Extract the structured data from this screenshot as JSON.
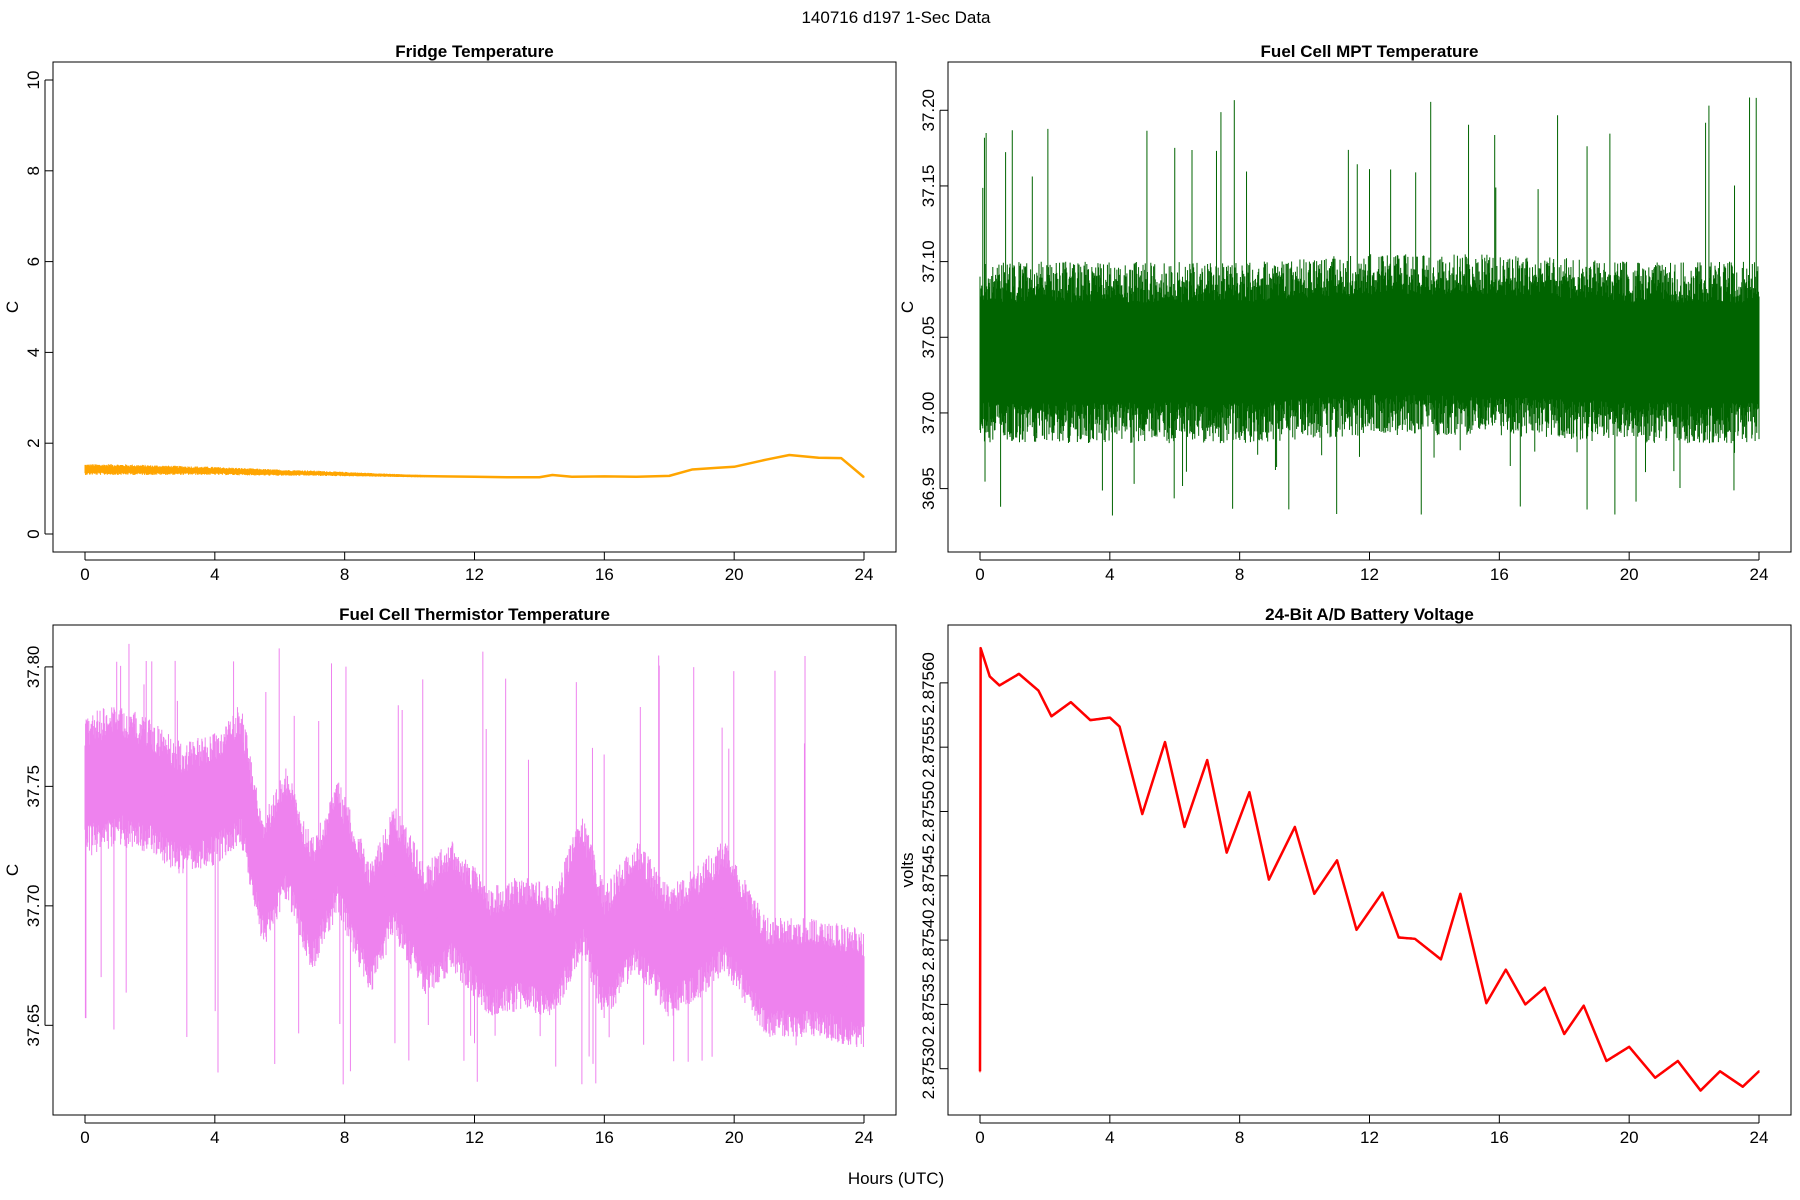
{
  "figure": {
    "title": "140716   d197   1-Sec Data",
    "xlabel": "Hours (UTC)"
  },
  "chart_data": [
    {
      "type": "line",
      "title": "Fridge Temperature",
      "xlabel": "",
      "ylabel": "C",
      "color": "#FFA500",
      "xlim": [
        0,
        24
      ],
      "ylim": [
        0,
        10
      ],
      "xticks": [
        0,
        4,
        8,
        12,
        16,
        20,
        24
      ],
      "yticks": [
        0,
        2,
        4,
        6,
        8,
        10
      ],
      "ytick_labels": [
        "0",
        "2",
        "4",
        "6",
        "8",
        "10"
      ],
      "x": [
        0,
        1,
        2,
        3,
        4,
        5,
        6,
        7,
        8,
        9,
        10,
        11,
        12,
        13,
        14,
        14.4,
        15,
        16,
        17,
        18,
        18.7,
        19.5,
        20,
        21,
        21.7,
        22.6,
        23.3,
        24
      ],
      "y": [
        1.42,
        1.42,
        1.41,
        1.4,
        1.39,
        1.37,
        1.35,
        1.34,
        1.32,
        1.3,
        1.28,
        1.27,
        1.26,
        1.25,
        1.25,
        1.3,
        1.26,
        1.27,
        1.26,
        1.28,
        1.42,
        1.46,
        1.48,
        1.64,
        1.74,
        1.68,
        1.67,
        1.25
      ],
      "band": [
        0.12,
        0.12,
        0.11,
        0.1,
        0.09,
        0.08,
        0.07,
        0.06,
        0.05,
        0.04,
        0.03,
        0.02,
        0.015,
        0.01,
        0.01,
        0.01,
        0.01,
        0.01,
        0.01,
        0.01,
        0.01,
        0.01,
        0.01,
        0.01,
        0.01,
        0.01,
        0.01,
        0.01
      ]
    },
    {
      "type": "line",
      "title": "Fuel Cell MPT Temperature",
      "xlabel": "",
      "ylabel": "C",
      "color": "#006400",
      "xlim": [
        0,
        24
      ],
      "ylim": [
        36.92,
        37.22
      ],
      "xticks": [
        0,
        4,
        8,
        12,
        16,
        20,
        24
      ],
      "yticks": [
        36.95,
        37.0,
        37.05,
        37.1,
        37.15,
        37.2
      ],
      "ytick_labels": [
        "36.95",
        "37.00",
        "37.05",
        "37.10",
        "37.15",
        "37.20"
      ],
      "x": [
        0,
        4,
        8,
        12,
        16,
        20,
        24
      ],
      "y": [
        37.04,
        37.04,
        37.04,
        37.045,
        37.045,
        37.04,
        37.04
      ],
      "band": [
        0.06,
        0.06,
        0.06,
        0.06,
        0.06,
        0.06,
        0.06
      ],
      "range_min": 36.93,
      "range_max": 37.21
    },
    {
      "type": "line",
      "title": "Fuel Cell Thermistor Temperature",
      "xlabel": "",
      "ylabel": "C",
      "color": "#EE82EE",
      "xlim": [
        0,
        24
      ],
      "ylim": [
        37.62,
        37.81
      ],
      "xticks": [
        0,
        4,
        8,
        12,
        16,
        20,
        24
      ],
      "yticks": [
        37.65,
        37.7,
        37.75,
        37.8
      ],
      "ytick_labels": [
        "37.65",
        "37.70",
        "37.75",
        "37.80"
      ],
      "x": [
        0,
        1,
        2,
        3,
        4,
        4.8,
        5.5,
        6.2,
        7,
        7.8,
        8.8,
        9.5,
        10.5,
        11.3,
        12.5,
        13.5,
        14.5,
        15.3,
        16,
        17,
        18,
        19,
        19.7,
        21,
        22.5,
        24
      ],
      "y": [
        37.75,
        37.755,
        37.75,
        37.74,
        37.745,
        37.755,
        37.71,
        37.73,
        37.7,
        37.725,
        37.69,
        37.715,
        37.69,
        37.7,
        37.68,
        37.685,
        37.68,
        37.71,
        37.68,
        37.7,
        37.68,
        37.69,
        37.7,
        37.67,
        37.67,
        37.665
      ],
      "band": [
        0.03,
        0.03,
        0.028,
        0.028,
        0.028,
        0.03,
        0.028,
        0.028,
        0.028,
        0.028,
        0.028,
        0.028,
        0.028,
        0.028,
        0.028,
        0.028,
        0.028,
        0.03,
        0.028,
        0.028,
        0.028,
        0.028,
        0.028,
        0.025,
        0.025,
        0.025
      ],
      "range_min": 37.625,
      "range_max": 37.81,
      "outlier": {
        "x": 0.02,
        "y": 37.653
      }
    },
    {
      "type": "line",
      "title": "24-Bit A/D Battery Voltage",
      "xlabel": "",
      "ylabel": "volts",
      "color": "#FF0000",
      "xlim": [
        0,
        24
      ],
      "ylim": [
        2.875278,
        2.875631
      ],
      "xticks": [
        0,
        4,
        8,
        12,
        16,
        20,
        24
      ],
      "yticks": [
        2.8753,
        2.87535,
        2.8754,
        2.87545,
        2.8755,
        2.87555,
        2.8756
      ],
      "ytick_labels": [
        "2.87530",
        "2.87535",
        "2.87540",
        "2.87545",
        "2.87550",
        "2.87555",
        "2.87560"
      ],
      "x": [
        0,
        0.02,
        0.3,
        0.6,
        1.2,
        1.8,
        2.2,
        2.8,
        3.4,
        4.0,
        4.3,
        5.0,
        5.7,
        6.3,
        7.0,
        7.6,
        8.3,
        8.9,
        9.7,
        10.3,
        11.0,
        11.6,
        12.4,
        12.9,
        13.4,
        14.2,
        14.8,
        15.6,
        16.2,
        16.8,
        17.4,
        18.0,
        18.6,
        19.3,
        20.0,
        20.8,
        21.5,
        22.2,
        22.8,
        23.5,
        24.0
      ],
      "y": [
        2.875298,
        2.875627,
        2.875605,
        2.875598,
        2.875607,
        2.875594,
        2.875574,
        2.875585,
        2.875571,
        2.875573,
        2.875566,
        2.875498,
        2.875554,
        2.875488,
        2.87554,
        2.875468,
        2.875515,
        2.875447,
        2.875488,
        2.875436,
        2.875462,
        2.875408,
        2.875437,
        2.875402,
        2.875401,
        2.875385,
        2.875436,
        2.875351,
        2.875377,
        2.87535,
        2.875363,
        2.875327,
        2.875349,
        2.875306,
        2.875317,
        2.875293,
        2.875306,
        2.875283,
        2.875298,
        2.875286,
        2.875298
      ],
      "band": [
        1e-06,
        1e-06,
        1e-06,
        1e-06,
        1e-06,
        1e-06,
        1e-06,
        1e-06,
        1e-06,
        1e-06,
        1e-06,
        1e-06,
        1e-06,
        1e-06,
        1e-06,
        1e-06,
        1e-06,
        1e-06,
        1e-06,
        1e-06,
        1e-06,
        1e-06,
        1e-06,
        1e-06,
        1e-06,
        1e-06,
        1e-06,
        1e-06,
        1e-06,
        1e-06,
        1e-06,
        1e-06,
        1e-06,
        1e-06,
        1e-06,
        1e-06,
        1e-06,
        1e-06,
        1e-06,
        1e-06,
        1e-06
      ]
    }
  ]
}
